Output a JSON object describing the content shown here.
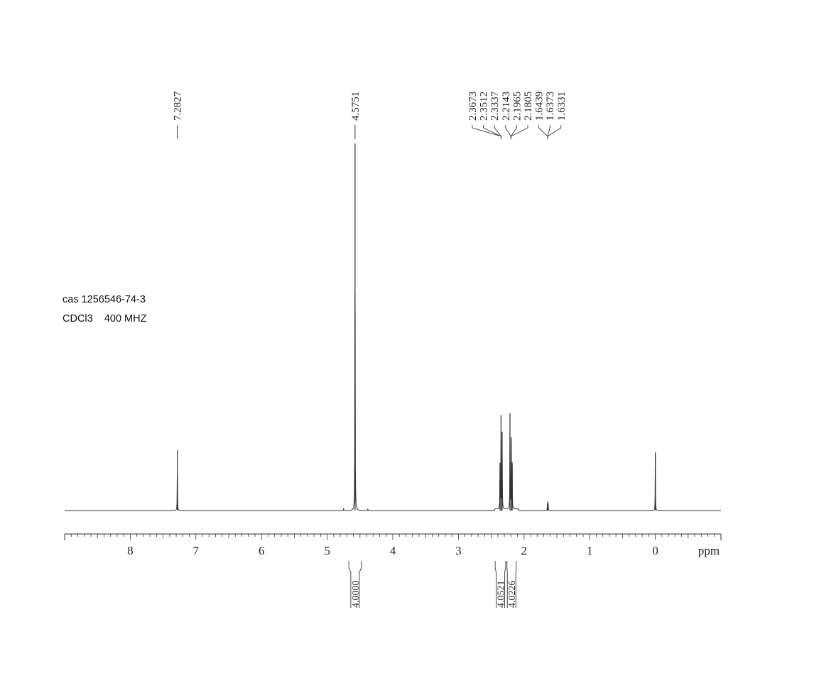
{
  "sample": {
    "id_text": "cas 1256546-74-3",
    "conditions_text": "CDCl3    400 MHZ"
  },
  "chart_data": {
    "type": "line",
    "spectrum": "1H NMR",
    "xlabel": "ppm",
    "xlim": [
      9.0,
      -1.0
    ],
    "x_ticks": [
      8,
      7,
      6,
      5,
      4,
      3,
      2,
      1,
      0
    ],
    "x_tick_labels": [
      "8",
      "7",
      "6",
      "5",
      "4",
      "3",
      "2",
      "1",
      "0"
    ],
    "minor_tick_step": 0.1,
    "peaks": [
      {
        "ppm": 7.2827,
        "height": 0.165
      },
      {
        "ppm": 4.5751,
        "height": 1.0
      },
      {
        "ppm": 4.75,
        "height": 0.006
      },
      {
        "ppm": 4.38,
        "height": 0.005
      },
      {
        "ppm": 2.3673,
        "height": 0.13
      },
      {
        "ppm": 2.3512,
        "height": 0.26
      },
      {
        "ppm": 2.3337,
        "height": 0.215
      },
      {
        "ppm": 2.2143,
        "height": 0.265
      },
      {
        "ppm": 2.1965,
        "height": 0.195
      },
      {
        "ppm": 2.1805,
        "height": 0.125
      },
      {
        "ppm": 1.6439,
        "height": 0.018
      },
      {
        "ppm": 1.6373,
        "height": 0.024
      },
      {
        "ppm": 1.6331,
        "height": 0.016
      },
      {
        "ppm": 0.0,
        "height": 0.158
      }
    ],
    "peak_labels": {
      "groups": [
        {
          "labels": [
            "7.2827"
          ],
          "anchors_ppm": [
            7.2827
          ]
        },
        {
          "labels": [
            "4.5751"
          ],
          "anchors_ppm": [
            4.5751
          ]
        },
        {
          "labels": [
            "2.3673",
            "2.3512",
            "2.3337",
            "2.2143",
            "2.1965",
            "2.1805",
            "1.6439",
            "1.6373",
            "1.6331"
          ],
          "anchors_ppm": [
            2.35,
            2.35,
            2.35,
            2.2,
            2.2,
            2.2,
            1.64,
            1.64,
            1.64
          ]
        }
      ]
    },
    "integrals": [
      {
        "value": "4.0000",
        "from_ppm": 4.67,
        "to_ppm": 4.48
      },
      {
        "value": "4.0521",
        "from_ppm": 2.44,
        "to_ppm": 2.28
      },
      {
        "value": "4.0226",
        "from_ppm": 2.26,
        "to_ppm": 2.12
      }
    ]
  }
}
